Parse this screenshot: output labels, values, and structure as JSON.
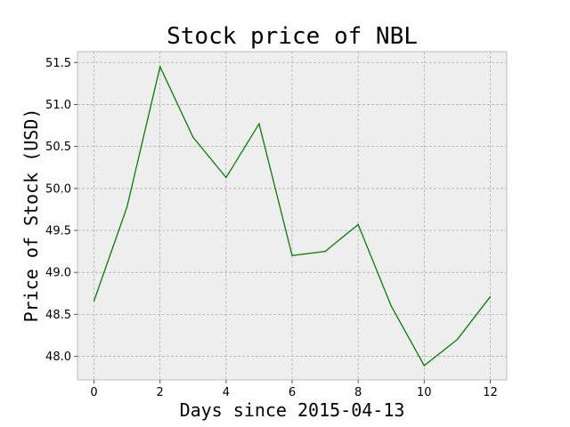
{
  "chart_data": {
    "type": "line",
    "title": "Stock price of NBL",
    "xlabel": "Days since 2015-04-13",
    "ylabel": "Price of Stock (USD)",
    "xlim": [
      -0.5,
      12.5
    ],
    "ylim": [
      47.72,
      51.63
    ],
    "x_ticks": [
      0,
      2,
      4,
      6,
      8,
      10,
      12
    ],
    "y_ticks": [
      48.0,
      48.5,
      49.0,
      49.5,
      50.0,
      50.5,
      51.0,
      51.5
    ],
    "grid": true,
    "colors": {
      "line": "#008000",
      "plot_background": "#eeeeee",
      "grid": "#b0b0b0"
    },
    "series": [
      {
        "x": [
          0,
          1,
          2,
          3,
          4,
          5,
          6,
          7,
          8,
          9,
          10,
          11,
          12
        ],
        "values": [
          48.66,
          49.78,
          51.45,
          50.61,
          50.13,
          50.77,
          49.2,
          49.25,
          49.57,
          48.6,
          47.89,
          48.2,
          48.71
        ]
      }
    ]
  }
}
